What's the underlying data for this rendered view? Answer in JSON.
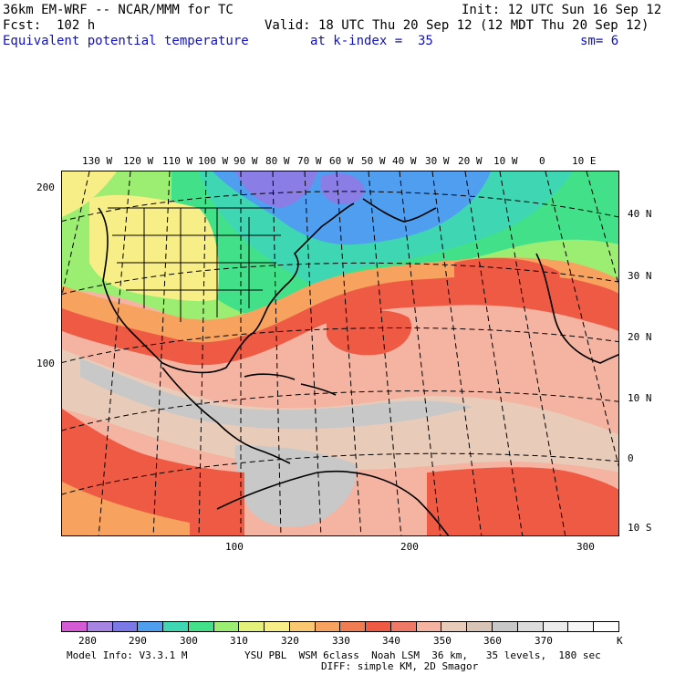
{
  "header": {
    "model_title": "36km EM-WRF -- NCAR/MMM for TC",
    "init_time": "Init: 12 UTC Sun 16 Sep 12",
    "forecast_hour": "Fcst:  102 h",
    "valid_time": "Valid: 18 UTC Thu 20 Sep 12 (12 MDT Thu 20 Sep 12)",
    "field_name": "Equivalent potential temperature",
    "level": "at k-index =  35",
    "smoothing": "sm= 6"
  },
  "map": {
    "region": "North Atlantic / Americas",
    "longitude_labels": [
      "130 W",
      "120 W",
      "110 W",
      "100 W",
      "90 W",
      "80 W",
      "70 W",
      "60 W",
      "50 W",
      "40 W",
      "30 W",
      "20 W",
      "10 W",
      "0",
      "10 E"
    ],
    "latitude_labels": [
      "40 N",
      "30 N",
      "20 N",
      "10 N",
      "0",
      "10 S"
    ],
    "grid_y_labels": [
      "200",
      "100"
    ],
    "grid_x_labels": [
      "100",
      "200",
      "300"
    ],
    "colors": {
      "cold": "#8a7ee6",
      "cool": "#4f9ef0",
      "teal": "#3fd6b4",
      "green": "#43e08a",
      "lime": "#9cee72",
      "yellow": "#f7ee88",
      "orange": "#f7a25e",
      "red": "#ee5a44",
      "salmon": "#f5b3a2",
      "tan": "#e8cbb8",
      "gray": "#c8c8c8"
    }
  },
  "legend": {
    "unit": "K",
    "labels": [
      "280",
      "290",
      "300",
      "310",
      "320",
      "330",
      "340",
      "350",
      "360",
      "370"
    ],
    "colors": [
      "#d45ad6",
      "#a584e2",
      "#7b78e8",
      "#4f9ef0",
      "#3fd6b4",
      "#43e08a",
      "#9cee72",
      "#e3f07a",
      "#f7ee88",
      "#f9c870",
      "#f7a25e",
      "#f07d52",
      "#ee5a44",
      "#f07866",
      "#f5b3a2",
      "#e8cbb8",
      "#d8c4b6",
      "#c8c8c8",
      "#dcdcdc",
      "#ececec",
      "#f6f6f6",
      "#ffffff"
    ]
  },
  "footer": {
    "model_info": "Model Info: V3.3.1 M",
    "physics": "YSU PBL  WSM 6class  Noah LSM  36 km,   35 levels,  180 sec",
    "diffusion": "DIFF: simple KM, 2D Smagor"
  }
}
